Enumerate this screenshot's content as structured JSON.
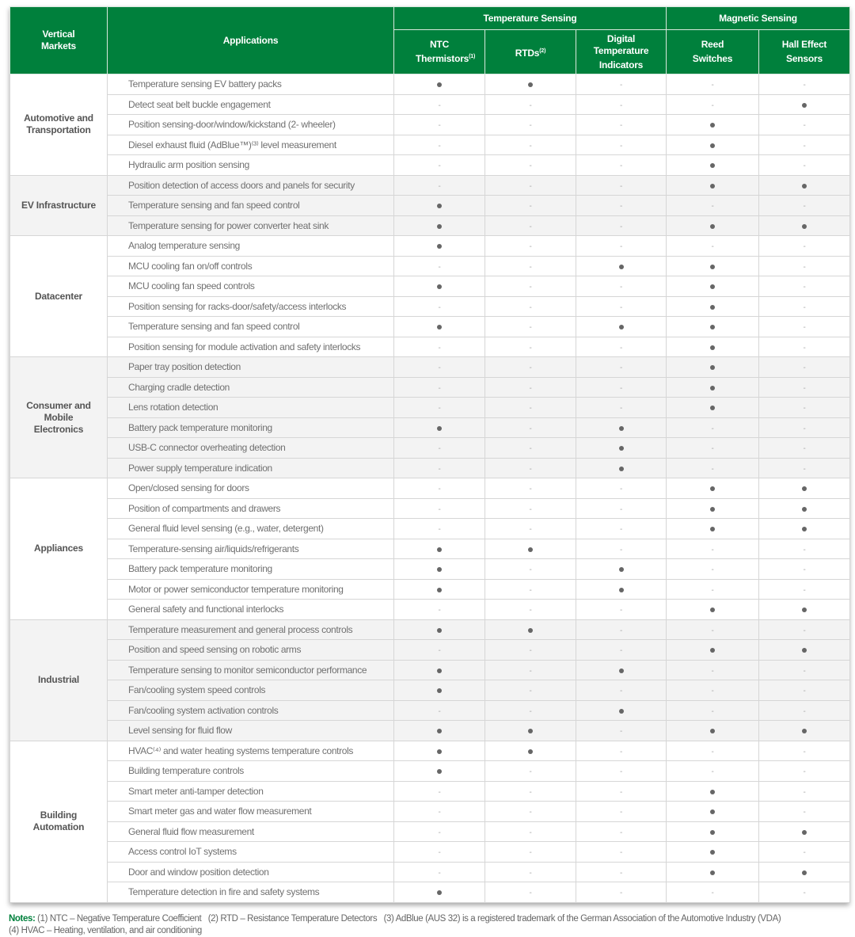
{
  "header": {
    "vertical_markets": "Vertical Markets",
    "applications": "Applications",
    "group_temperature": "Temperature Sensing",
    "group_magnetic": "Magnetic Sensing",
    "columns": [
      {
        "label": "NTC Thermistors",
        "sup": "(1)"
      },
      {
        "label": "RTDs",
        "sup": "(2)"
      },
      {
        "label": "Digital Temperature Indicators",
        "sup": ""
      },
      {
        "label": "Reed Switches",
        "sup": ""
      },
      {
        "label": "Hall Effect Sensors",
        "sup": ""
      }
    ]
  },
  "marks": {
    "yes": "dot-icon",
    "no": "-"
  },
  "colors": {
    "header_green": "#00803c",
    "shaded_row": "#f3f3f3",
    "dot": "#666666"
  },
  "markets": [
    {
      "name": "Automotive and Transportation",
      "shaded": false,
      "rows": [
        {
          "app": "Temperature sensing EV battery packs",
          "m": [
            1,
            1,
            0,
            0,
            0
          ]
        },
        {
          "app": "Detect seat belt buckle engagement",
          "m": [
            0,
            0,
            0,
            0,
            1
          ]
        },
        {
          "app": "Position sensing-door/window/kickstand (2- wheeler)",
          "m": [
            0,
            0,
            0,
            1,
            0
          ]
        },
        {
          "app": "Diesel exhaust fluid (AdBlue™)⁽³⁾ level measurement",
          "m": [
            0,
            0,
            0,
            1,
            0
          ]
        },
        {
          "app": "Hydraulic arm position sensing",
          "m": [
            0,
            0,
            0,
            1,
            0
          ]
        }
      ]
    },
    {
      "name": "EV Infrastructure",
      "shaded": true,
      "rows": [
        {
          "app": "Position detection of access doors and panels for security",
          "m": [
            0,
            0,
            0,
            1,
            1
          ]
        },
        {
          "app": "Temperature sensing and fan speed control",
          "m": [
            1,
            0,
            0,
            0,
            0
          ]
        },
        {
          "app": "Temperature sensing for power converter heat sink",
          "m": [
            1,
            0,
            0,
            1,
            1
          ]
        }
      ]
    },
    {
      "name": "Datacenter",
      "shaded": false,
      "rows": [
        {
          "app": "Analog temperature sensing",
          "m": [
            1,
            0,
            0,
            0,
            0
          ]
        },
        {
          "app": "MCU cooling fan on/off controls",
          "m": [
            0,
            0,
            1,
            1,
            0
          ]
        },
        {
          "app": "MCU cooling fan speed controls",
          "m": [
            1,
            0,
            0,
            1,
            0
          ]
        },
        {
          "app": "Position sensing for racks-door/safety/access interlocks",
          "m": [
            0,
            0,
            0,
            1,
            0
          ]
        },
        {
          "app": "Temperature sensing and fan speed control",
          "m": [
            1,
            0,
            1,
            1,
            0
          ]
        },
        {
          "app": "Position sensing for module activation and safety interlocks",
          "m": [
            0,
            0,
            0,
            1,
            0
          ]
        }
      ]
    },
    {
      "name": "Consumer and Mobile Electronics",
      "shaded": true,
      "rows": [
        {
          "app": "Paper tray position detection",
          "m": [
            0,
            0,
            0,
            1,
            0
          ]
        },
        {
          "app": "Charging cradle detection",
          "m": [
            0,
            0,
            0,
            1,
            0
          ]
        },
        {
          "app": "Lens rotation detection",
          "m": [
            0,
            0,
            0,
            1,
            0
          ]
        },
        {
          "app": "Battery pack temperature monitoring",
          "m": [
            1,
            0,
            1,
            0,
            0
          ]
        },
        {
          "app": "USB-C connector overheating detection",
          "m": [
            0,
            0,
            1,
            0,
            0
          ]
        },
        {
          "app": "Power supply temperature indication",
          "m": [
            0,
            0,
            1,
            0,
            0
          ]
        }
      ]
    },
    {
      "name": "Appliances",
      "shaded": false,
      "rows": [
        {
          "app": "Open/closed sensing for doors",
          "m": [
            0,
            0,
            0,
            1,
            1
          ]
        },
        {
          "app": "Position of compartments and drawers",
          "m": [
            0,
            0,
            0,
            1,
            1
          ]
        },
        {
          "app": "General fluid level sensing (e.g., water, detergent)",
          "m": [
            0,
            0,
            0,
            1,
            1
          ]
        },
        {
          "app": "Temperature-sensing air/liquids/refrigerants",
          "m": [
            1,
            1,
            0,
            0,
            0
          ]
        },
        {
          "app": "Battery pack temperature monitoring",
          "m": [
            1,
            0,
            1,
            0,
            0
          ]
        },
        {
          "app": "Motor or power semiconductor temperature monitoring",
          "m": [
            1,
            0,
            1,
            0,
            0
          ]
        },
        {
          "app": "General safety and functional interlocks",
          "m": [
            0,
            0,
            0,
            1,
            1
          ]
        }
      ]
    },
    {
      "name": "Industrial",
      "shaded": true,
      "rows": [
        {
          "app": "Temperature measurement and general process controls",
          "m": [
            1,
            1,
            0,
            0,
            0
          ]
        },
        {
          "app": "Position and speed sensing on robotic arms",
          "m": [
            0,
            0,
            0,
            1,
            1
          ]
        },
        {
          "app": "Temperature sensing to monitor semiconductor performance",
          "m": [
            1,
            0,
            1,
            0,
            0
          ]
        },
        {
          "app": "Fan/cooling system speed controls",
          "m": [
            1,
            0,
            0,
            0,
            0
          ]
        },
        {
          "app": "Fan/cooling system activation controls",
          "m": [
            0,
            0,
            1,
            0,
            0
          ]
        },
        {
          "app": "Level sensing for fluid flow",
          "m": [
            1,
            1,
            0,
            1,
            1
          ]
        }
      ]
    },
    {
      "name": "Building Automation",
      "shaded": false,
      "rows": [
        {
          "app": "HVAC⁽⁴⁾ and water heating systems temperature controls",
          "m": [
            1,
            1,
            0,
            0,
            0
          ]
        },
        {
          "app": "Building temperature controls",
          "m": [
            1,
            0,
            0,
            0,
            0
          ]
        },
        {
          "app": "Smart meter anti-tamper detection",
          "m": [
            0,
            0,
            0,
            1,
            0
          ]
        },
        {
          "app": "Smart meter gas and water flow measurement",
          "m": [
            0,
            0,
            0,
            1,
            0
          ]
        },
        {
          "app": "General fluid flow measurement",
          "m": [
            0,
            0,
            0,
            1,
            1
          ]
        },
        {
          "app": "Access control IoT systems",
          "m": [
            0,
            0,
            0,
            1,
            0
          ]
        },
        {
          "app": "Door and window position detection",
          "m": [
            0,
            0,
            0,
            1,
            1
          ]
        },
        {
          "app": "Temperature detection in fire and safety systems",
          "m": [
            1,
            0,
            0,
            0,
            0
          ]
        }
      ]
    }
  ],
  "notes": {
    "label": "Notes:",
    "line1": " (1) NTC – Negative Temperature Coefficient   (2) RTD – Resistance Temperature Detectors   (3) AdBlue (AUS 32) is a registered trademark of the German Association of the Automotive Industry (VDA)",
    "line2": "(4) HVAC – Heating, ventilation, and air conditioning"
  }
}
